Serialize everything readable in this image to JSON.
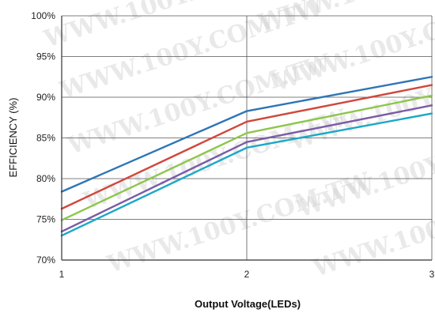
{
  "watermark": "WWW.100Y.COM.TW",
  "chart_data": {
    "type": "line",
    "title": "",
    "xlabel": "Output Voltage(LEDs)",
    "ylabel": "EFFICIENCY (%)",
    "x": [
      1,
      2,
      3
    ],
    "xlim": [
      1,
      3
    ],
    "ylim": [
      70,
      100
    ],
    "x_ticks": [
      "1",
      "2",
      "3"
    ],
    "y_ticks": [
      "70%",
      "75%",
      "80%",
      "85%",
      "90%",
      "95%",
      "100%"
    ],
    "grid": "horizontal",
    "series": [
      {
        "color": "#2e75b6",
        "values": [
          78.4,
          88.3,
          92.5
        ]
      },
      {
        "color": "#d0473c",
        "values": [
          76.3,
          87.0,
          91.5
        ]
      },
      {
        "color": "#8dc64c",
        "values": [
          74.9,
          85.6,
          90.2
        ]
      },
      {
        "color": "#7b5ca6",
        "values": [
          73.5,
          84.5,
          89.0
        ]
      },
      {
        "color": "#1aa8c8",
        "values": [
          73.0,
          83.8,
          88.0
        ]
      }
    ]
  }
}
